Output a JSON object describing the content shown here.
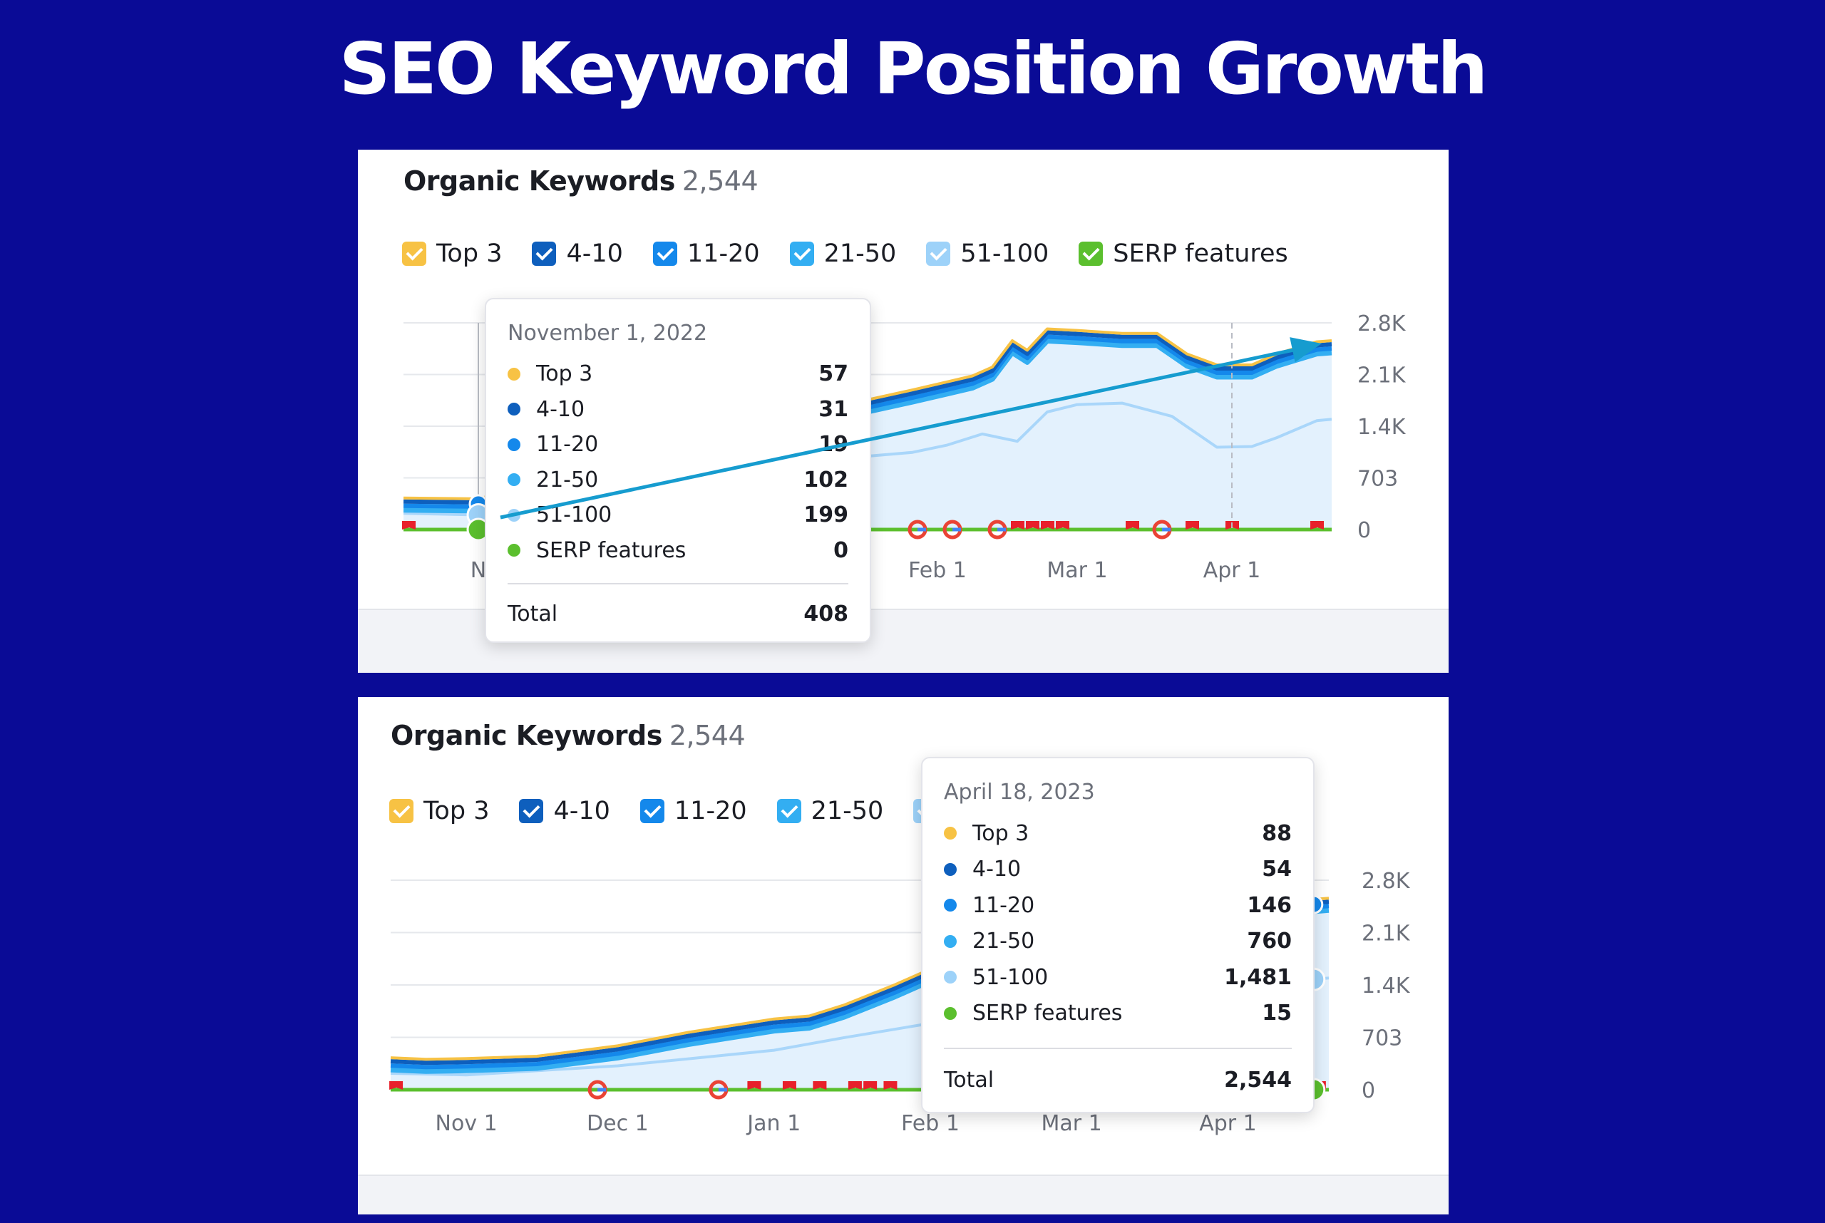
{
  "page_title": "SEO Keyword Position Growth",
  "legend": [
    {
      "label": "Top 3",
      "color": "#f7c244"
    },
    {
      "label": "4-10",
      "color": "#0e5fbd"
    },
    {
      "label": "11-20",
      "color": "#1488eb"
    },
    {
      "label": "21-50",
      "color": "#33aef2"
    },
    {
      "label": "51-100",
      "color": "#9dd2f9"
    },
    {
      "label": "SERP features",
      "color": "#5bbf2e"
    }
  ],
  "panels": [
    {
      "title": "Organic Keywords",
      "count": "2,544",
      "tooltip": {
        "date": "November 1, 2022",
        "rows": [
          {
            "label": "Top 3",
            "value": "57",
            "color": "#f7c244"
          },
          {
            "label": "4-10",
            "value": "31",
            "color": "#0e5fbd"
          },
          {
            "label": "11-20",
            "value": "19",
            "color": "#1488eb"
          },
          {
            "label": "21-50",
            "value": "102",
            "color": "#33aef2"
          },
          {
            "label": "51-100",
            "value": "199",
            "color": "#9dd2f9"
          },
          {
            "label": "SERP features",
            "value": "0",
            "color": "#5bbf2e"
          }
        ],
        "total_label": "Total",
        "total_value": "408"
      }
    },
    {
      "title": "Organic Keywords",
      "count": "2,544",
      "tooltip": {
        "date": "April 18, 2023",
        "rows": [
          {
            "label": "Top 3",
            "value": "88",
            "color": "#f7c244"
          },
          {
            "label": "4-10",
            "value": "54",
            "color": "#0e5fbd"
          },
          {
            "label": "11-20",
            "value": "146",
            "color": "#1488eb"
          },
          {
            "label": "21-50",
            "value": "760",
            "color": "#33aef2"
          },
          {
            "label": "51-100",
            "value": "1,481",
            "color": "#9dd2f9"
          },
          {
            "label": "SERP features",
            "value": "15",
            "color": "#5bbf2e"
          }
        ],
        "total_label": "Total",
        "total_value": "2,544"
      }
    }
  ],
  "chart_data": [
    {
      "type": "area",
      "title": "Organic Keywords",
      "y_ticks": [
        "2.8K",
        "2.1K",
        "1.4K",
        "703",
        "0"
      ],
      "y_range": [
        0,
        2812
      ],
      "x_range": [
        "2022-10-17",
        "2023-04-21"
      ],
      "x_ticks": [
        {
          "date": "2022-11-01",
          "label": "N"
        },
        {
          "date": "2023-02-01",
          "label": "Feb 1"
        },
        {
          "date": "2023-03-01",
          "label": "Mar 1"
        },
        {
          "date": "2023-04-01",
          "label": "Apr 1"
        }
      ],
      "series": [
        {
          "name": "Total",
          "points": [
            [
              "2022-10-17",
              420
            ],
            [
              "2022-11-01",
              408
            ],
            [
              "2023-01-06",
              1550
            ],
            [
              "2023-01-15",
              1710
            ],
            [
              "2023-01-27",
              1890
            ],
            [
              "2023-02-03",
              2000
            ],
            [
              "2023-02-08",
              2080
            ],
            [
              "2023-02-12",
              2200
            ],
            [
              "2023-02-16",
              2560
            ],
            [
              "2023-02-19",
              2430
            ],
            [
              "2023-02-23",
              2720
            ],
            [
              "2023-03-01",
              2700
            ],
            [
              "2023-03-10",
              2660
            ],
            [
              "2023-03-17",
              2660
            ],
            [
              "2023-03-23",
              2380
            ],
            [
              "2023-03-29",
              2230
            ],
            [
              "2023-04-05",
              2230
            ],
            [
              "2023-04-10",
              2380
            ],
            [
              "2023-04-18",
              2544
            ],
            [
              "2023-04-21",
              2560
            ]
          ]
        },
        {
          "name": "51-100",
          "points": [
            [
              "2022-10-17",
              220
            ],
            [
              "2022-11-01",
              199
            ],
            [
              "2023-01-06",
              900
            ],
            [
              "2023-01-15",
              980
            ],
            [
              "2023-01-27",
              1050
            ],
            [
              "2023-02-03",
              1150
            ],
            [
              "2023-02-10",
              1300
            ],
            [
              "2023-02-17",
              1200
            ],
            [
              "2023-02-23",
              1600
            ],
            [
              "2023-03-01",
              1700
            ],
            [
              "2023-03-10",
              1720
            ],
            [
              "2023-03-20",
              1540
            ],
            [
              "2023-03-29",
              1120
            ],
            [
              "2023-04-05",
              1130
            ],
            [
              "2023-04-10",
              1250
            ],
            [
              "2023-04-18",
              1481
            ],
            [
              "2023-04-21",
              1500
            ]
          ]
        }
      ],
      "serp_markers": [
        {
          "date": "2022-10-18",
          "type": "flag"
        },
        {
          "date": "2023-01-28",
          "type": "google"
        },
        {
          "date": "2023-02-04",
          "type": "google"
        },
        {
          "date": "2023-02-13",
          "type": "google"
        },
        {
          "date": "2023-02-17",
          "type": "flag"
        },
        {
          "date": "2023-02-20",
          "type": "flag"
        },
        {
          "date": "2023-02-23",
          "type": "flag"
        },
        {
          "date": "2023-02-26",
          "type": "flag"
        },
        {
          "date": "2023-03-12",
          "type": "flag"
        },
        {
          "date": "2023-03-18",
          "type": "google"
        },
        {
          "date": "2023-03-24",
          "type": "flag"
        },
        {
          "date": "2023-04-01",
          "type": "flag"
        },
        {
          "date": "2023-04-18",
          "type": "flag"
        }
      ],
      "annotation": "trend-arrow"
    },
    {
      "type": "area",
      "title": "Organic Keywords",
      "y_ticks": [
        "2.8K",
        "2.1K",
        "1.4K",
        "703",
        "0"
      ],
      "y_range": [
        0,
        2812
      ],
      "x_range": [
        "2022-10-17",
        "2023-04-21"
      ],
      "x_ticks": [
        {
          "date": "2022-11-01",
          "label": "Nov 1"
        },
        {
          "date": "2022-12-01",
          "label": "Dec 1"
        },
        {
          "date": "2023-01-01",
          "label": "Jan 1"
        },
        {
          "date": "2023-02-01",
          "label": "Feb 1"
        },
        {
          "date": "2023-03-01",
          "label": "Mar 1"
        },
        {
          "date": "2023-04-01",
          "label": "Apr 1"
        }
      ],
      "series": [
        {
          "name": "Total",
          "points": [
            [
              "2022-10-17",
              420
            ],
            [
              "2022-10-24",
              400
            ],
            [
              "2022-11-01",
              408
            ],
            [
              "2022-11-15",
              440
            ],
            [
              "2022-12-01",
              580
            ],
            [
              "2022-12-15",
              760
            ],
            [
              "2023-01-01",
              940
            ],
            [
              "2023-01-08",
              980
            ],
            [
              "2023-01-15",
              1130
            ],
            [
              "2023-01-25",
              1400
            ],
            [
              "2023-01-31",
              1580
            ],
            [
              "2023-04-18",
              2544
            ],
            [
              "2023-04-21",
              2560
            ]
          ]
        },
        {
          "name": "51-100",
          "points": [
            [
              "2022-10-17",
              220
            ],
            [
              "2022-11-01",
              199
            ],
            [
              "2022-12-01",
              320
            ],
            [
              "2023-01-01",
              530
            ],
            [
              "2023-01-15",
              700
            ],
            [
              "2023-01-31",
              880
            ],
            [
              "2023-04-18",
              1481
            ],
            [
              "2023-04-21",
              1500
            ]
          ]
        }
      ],
      "serp_markers": [
        {
          "date": "2022-10-18",
          "type": "flag"
        },
        {
          "date": "2022-11-27",
          "type": "google"
        },
        {
          "date": "2022-12-21",
          "type": "google"
        },
        {
          "date": "2022-12-28",
          "type": "flag"
        },
        {
          "date": "2023-01-04",
          "type": "flag"
        },
        {
          "date": "2023-01-10",
          "type": "flag"
        },
        {
          "date": "2023-01-17",
          "type": "flag"
        },
        {
          "date": "2023-01-20",
          "type": "flag"
        },
        {
          "date": "2023-01-24",
          "type": "flag"
        },
        {
          "date": "2023-04-18",
          "type": "google"
        },
        {
          "date": "2023-04-19",
          "type": "flag"
        }
      ]
    }
  ]
}
